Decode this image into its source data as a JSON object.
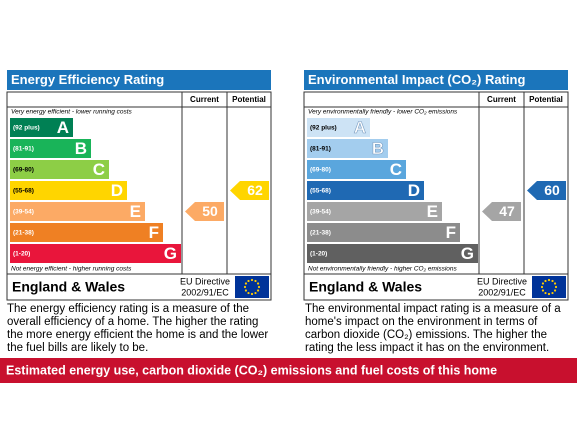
{
  "panels": [
    {
      "title": "Energy Efficiency Rating",
      "current_label": "Current",
      "potential_label": "Potential",
      "top_note": "Very energy efficient - lower running costs",
      "bottom_note": "Not energy efficient - higher running costs",
      "bands": [
        {
          "range": "(92 plus)",
          "letter": "A",
          "color": "#008054"
        },
        {
          "range": "(81-91)",
          "letter": "B",
          "color": "#19b459"
        },
        {
          "range": "(69-80)",
          "letter": "C",
          "color": "#8dce46"
        },
        {
          "range": "(55-68)",
          "letter": "D",
          "color": "#ffd500"
        },
        {
          "range": "(39-54)",
          "letter": "E",
          "color": "#fcaa65"
        },
        {
          "range": "(21-38)",
          "letter": "F",
          "color": "#ef8023"
        },
        {
          "range": "(1-20)",
          "letter": "G",
          "color": "#e9153b"
        }
      ],
      "current": 50,
      "potential": 62,
      "region": "England & Wales",
      "directive_line1": "EU Directive",
      "directive_line2": "2002/91/EC",
      "description": "The energy efficiency rating is a measure of the overall efficiency of a home. The higher the rating the more energy efficient the home is and the lower the fuel bills are likely to be."
    },
    {
      "title": "Environmental Impact (CO₂) Rating",
      "current_label": "Current",
      "potential_label": "Potential",
      "top_note": "Very environmentally friendly - lower CO₂ emissions",
      "bottom_note": "Not environmentally friendly - higher CO₂ emissions",
      "bands": [
        {
          "range": "(92 plus)",
          "letter": "A",
          "color": "#cde3f5"
        },
        {
          "range": "(81-91)",
          "letter": "B",
          "color": "#a3cdee"
        },
        {
          "range": "(69-80)",
          "letter": "C",
          "color": "#5aa6dd"
        },
        {
          "range": "(55-68)",
          "letter": "D",
          "color": "#1f69b3"
        },
        {
          "range": "(39-54)",
          "letter": "E",
          "color": "#a5a5a5"
        },
        {
          "range": "(21-38)",
          "letter": "F",
          "color": "#8c8c8c"
        },
        {
          "range": "(1-20)",
          "letter": "G",
          "color": "#606060"
        }
      ],
      "current": 47,
      "potential": 60,
      "region": "England & Wales",
      "directive_line1": "EU Directive",
      "directive_line2": "2002/91/EC",
      "description": "The environmental impact rating is a measure of a home's impact on the environment in terms of carbon dioxide (CO₂) emissions. The higher the rating the less impact it has on the environment."
    }
  ],
  "banner": "Estimated energy use, carbon dioxide (CO₂) emissions and fuel costs of this home"
}
